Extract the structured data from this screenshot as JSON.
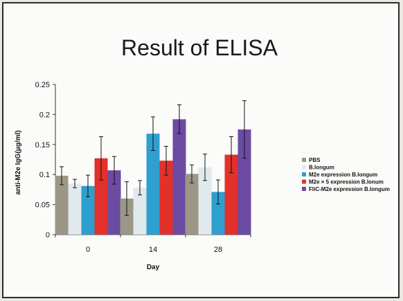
{
  "chart_data": {
    "type": "bar",
    "title": "Result of ELISA",
    "xlabel": "Day",
    "ylabel": "anti-M2e IgG(μg/ml)",
    "categories": [
      "0",
      "14",
      "28"
    ],
    "ylim": [
      0,
      0.25
    ],
    "yticks": [
      "0",
      "0.05",
      "0.1",
      "0.15",
      "0.2",
      "0.25"
    ],
    "grid": false,
    "legend_position": "right",
    "series": [
      {
        "name": "PBS",
        "color": "#9b9686",
        "values": [
          0.098,
          0.06,
          0.101
        ],
        "errors": [
          0.015,
          0.028,
          0.015
        ]
      },
      {
        "name": "B.longum",
        "color": "#e0e9ec",
        "values": [
          0.085,
          0.078,
          0.112
        ],
        "errors": [
          0.007,
          0.012,
          0.022
        ]
      },
      {
        "name": "M2e expression B.longum",
        "color": "#2f9fcf",
        "values": [
          0.081,
          0.168,
          0.071
        ],
        "errors": [
          0.018,
          0.028,
          0.02
        ]
      },
      {
        "name": "M2e × 5 expression B.lonum",
        "color": "#e2302a",
        "values": [
          0.127,
          0.123,
          0.133
        ],
        "errors": [
          0.036,
          0.024,
          0.03
        ]
      },
      {
        "name": "FliC-M2e expression B.longum",
        "color": "#6c4ba2",
        "values": [
          0.107,
          0.192,
          0.175
        ],
        "errors": [
          0.023,
          0.024,
          0.048
        ]
      }
    ]
  }
}
